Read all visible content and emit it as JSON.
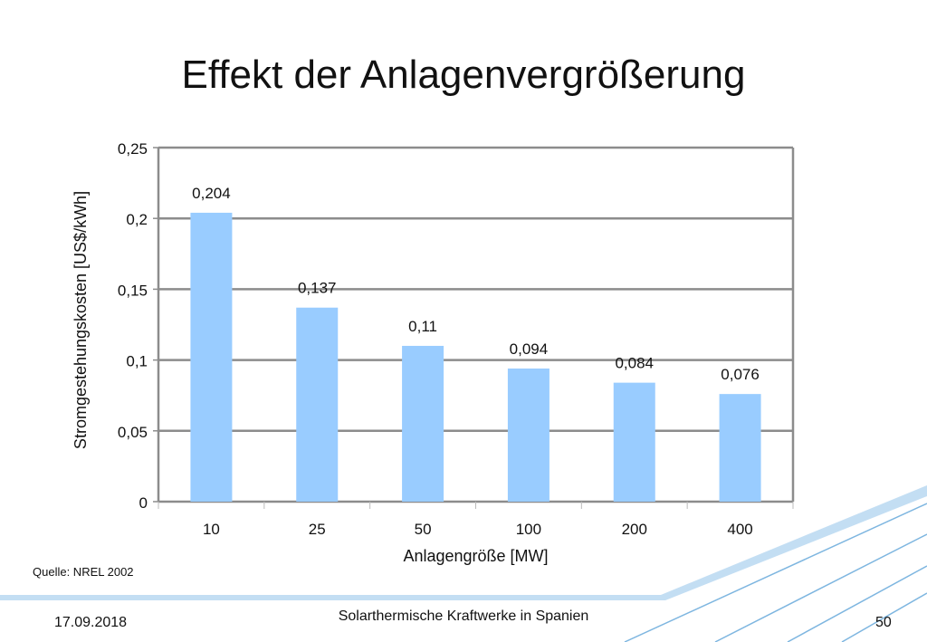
{
  "slide": {
    "title": "Effekt der Anlagenvergrößerung",
    "source": "Quelle: NREL 2002",
    "footer_date": "17.09.2018",
    "footer_title": "Solarthermische Kraftwerke in Spanien",
    "page_number": "50"
  },
  "colors": {
    "bar": "#99ccff",
    "plot_background": "#ffffff",
    "gridline": "#8c8c8c",
    "decoration": "#7eb6e0"
  },
  "chart_data": {
    "type": "bar",
    "categories": [
      "10",
      "25",
      "50",
      "100",
      "200",
      "400"
    ],
    "values": [
      0.204,
      0.137,
      0.11,
      0.094,
      0.084,
      0.076
    ],
    "value_labels": [
      "0,204",
      "0,137",
      "0,11",
      "0,094",
      "0,084",
      "0,076"
    ],
    "xlabel": "Anlagengröße [MW]",
    "ylabel": "Stromgestehungskosten [US$/kWh]",
    "ylim": [
      0,
      0.25
    ],
    "y_ticks": [
      0,
      0.05,
      0.1,
      0.15,
      0.2,
      0.25
    ],
    "y_tick_labels": [
      "0",
      "0,05",
      "0,1",
      "0,15",
      "0,2",
      "0,25"
    ],
    "grid": true,
    "legend": "none"
  }
}
